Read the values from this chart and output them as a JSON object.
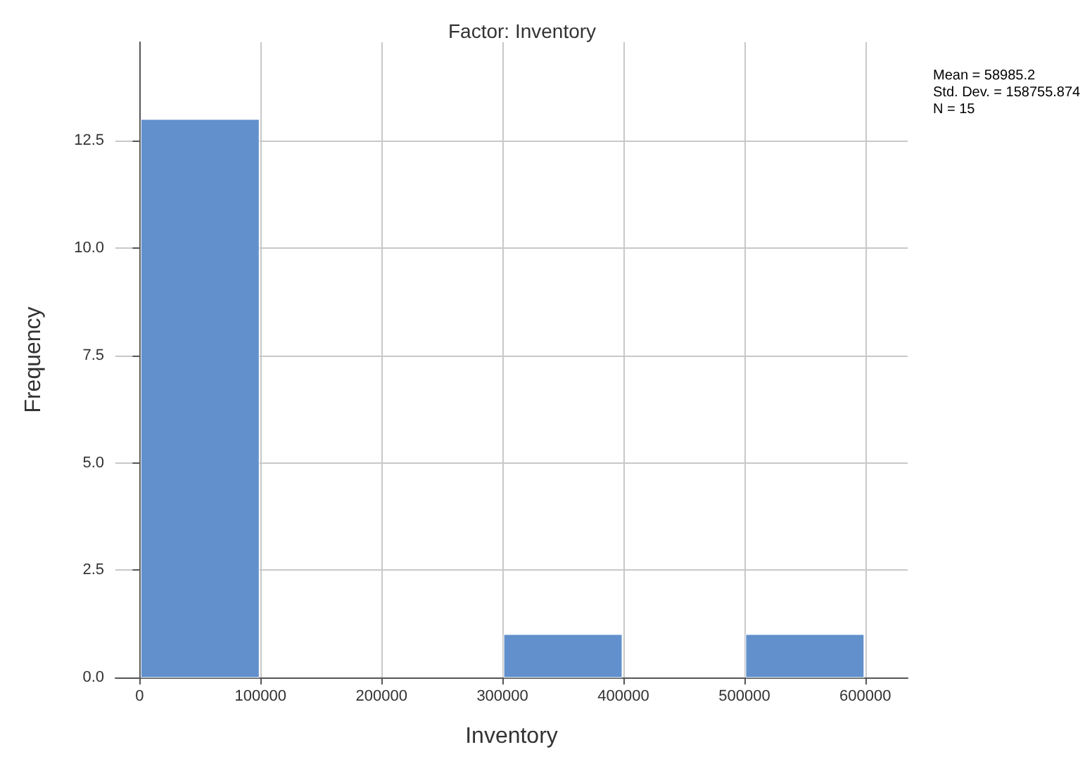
{
  "chart_data": {
    "type": "histogram",
    "title": "Factor: Inventory",
    "xlabel": "Inventory",
    "ylabel": "Frequency",
    "bins": [
      0,
      100000,
      200000,
      300000,
      400000,
      500000,
      600000
    ],
    "values": [
      13,
      0,
      0,
      1,
      0,
      1
    ],
    "color": "#6190cc",
    "xlim": [
      -20000,
      635000
    ],
    "xticks": [
      0,
      100000,
      200000,
      300000,
      400000,
      500000,
      600000
    ],
    "ylim": [
      0,
      14.8
    ],
    "yticks": [
      {
        "value": 0,
        "label": "0.0"
      },
      {
        "value": 2.5,
        "label": "2.5"
      },
      {
        "value": 5,
        "label": "5.0"
      },
      {
        "value": 7.5,
        "label": "7.5"
      },
      {
        "value": 10,
        "label": "10.0"
      },
      {
        "value": 12.5,
        "label": "12.5"
      }
    ],
    "grid": true,
    "annotations": [
      "Mean = 58985.2",
      "Std. Dev. = 158755.874",
      "N = 15"
    ]
  }
}
